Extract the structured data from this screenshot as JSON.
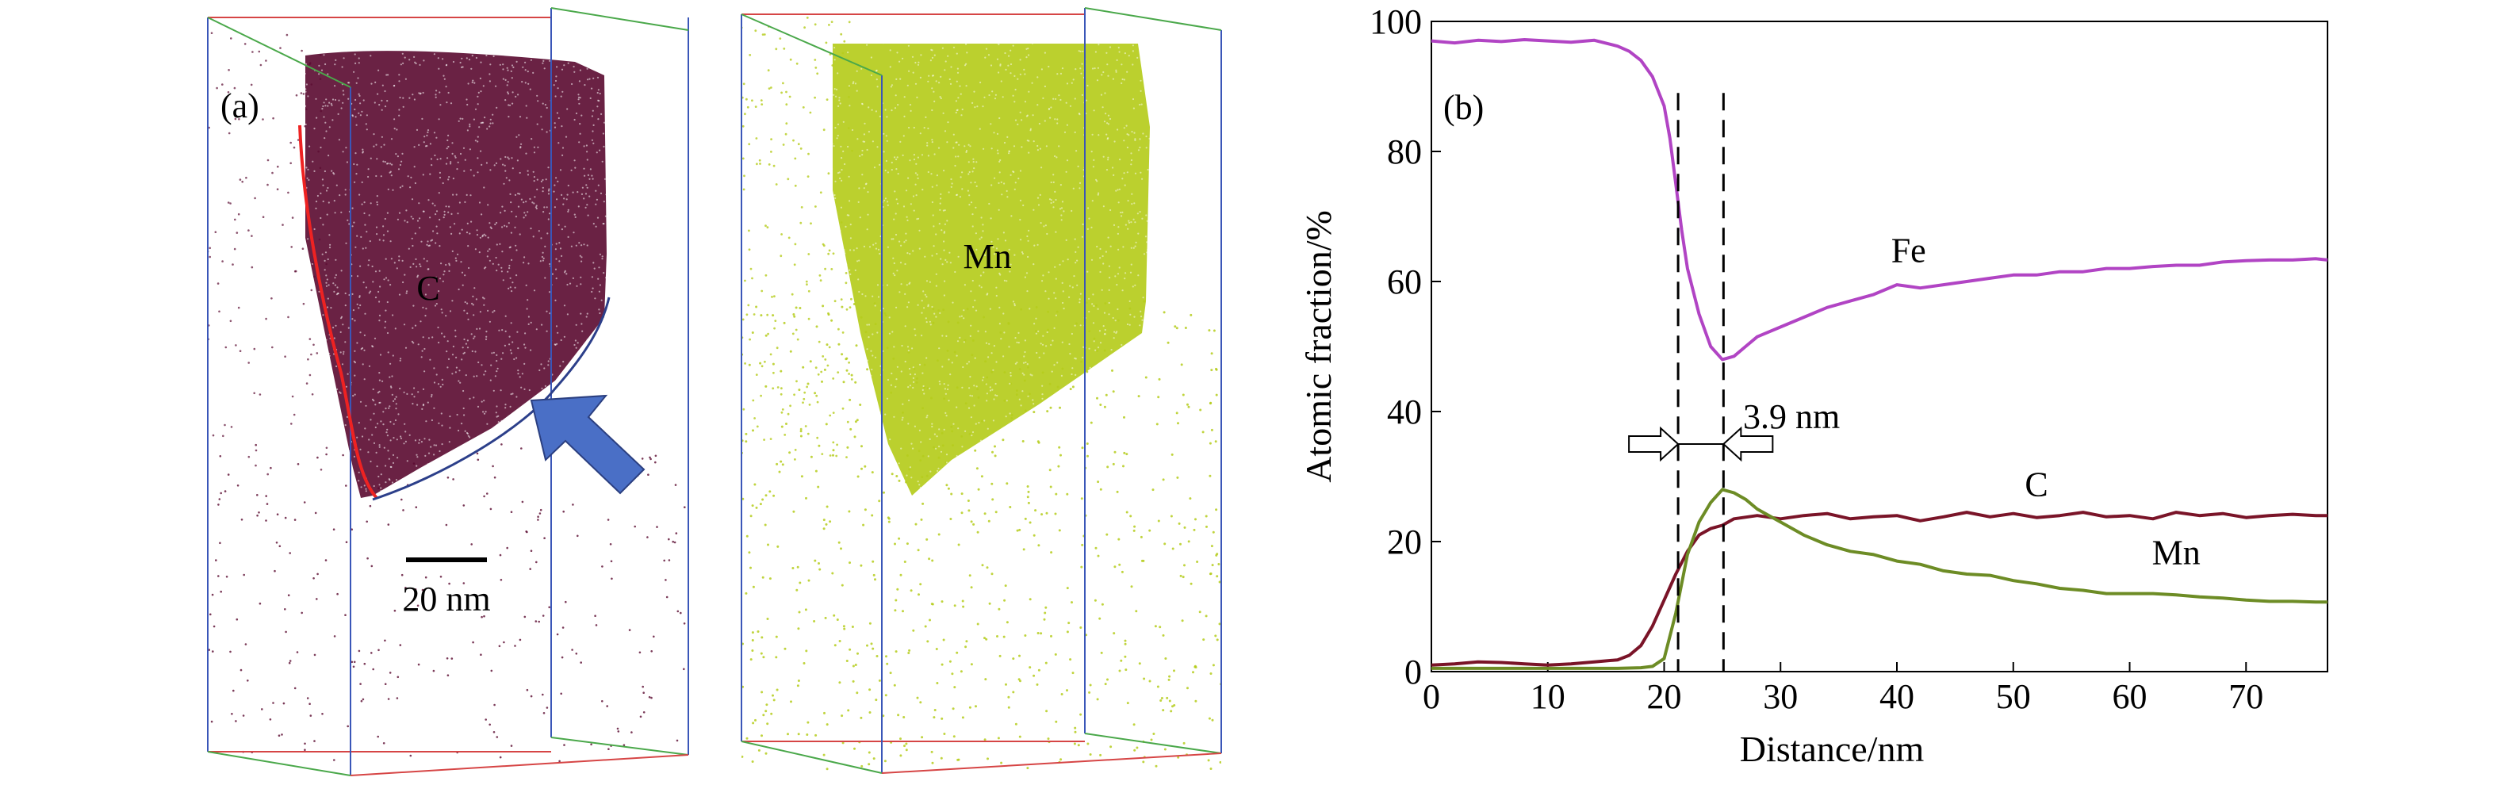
{
  "panel_a": {
    "label": "(a)",
    "carbon_label": "C",
    "manganese_label": "Mn",
    "scale_bar_label": "20 nm",
    "colors": {
      "carbon_atoms": "#5a0a30",
      "manganese_atoms": "#b5cc1c",
      "box_blue": "#3a56b8",
      "box_red": "#d64545",
      "box_green": "#4aa84a",
      "interface_red": "#ee2222",
      "interface_blue": "#2c3f8a",
      "arrow": "#4a6fc6"
    }
  },
  "chart_data": {
    "type": "line",
    "panel_label": "(b)",
    "xlabel": "Distance/nm",
    "ylabel": "Atomic fraction/%",
    "xlim": [
      0,
      77
    ],
    "ylim": [
      0,
      100
    ],
    "xticks": [
      0,
      10,
      20,
      30,
      40,
      50,
      60,
      70
    ],
    "yticks": [
      0,
      20,
      40,
      60,
      80,
      100
    ],
    "grid": false,
    "annotation": "3.9 nm",
    "interface_lines_x": [
      21.2,
      25.1
    ],
    "series": [
      {
        "name": "Fe",
        "color": "#b144c4",
        "x": [
          0,
          2,
          4,
          6,
          8,
          10,
          12,
          14,
          16,
          17,
          18,
          19,
          20,
          20.5,
          21,
          21.5,
          22,
          23,
          24,
          25,
          26,
          27,
          28,
          30,
          32,
          34,
          36,
          38,
          40,
          42,
          44,
          46,
          48,
          50,
          52,
          54,
          56,
          58,
          60,
          62,
          64,
          66,
          68,
          70,
          72,
          74,
          76,
          77
        ],
        "values": [
          97,
          96.7,
          97.1,
          96.9,
          97.2,
          97,
          96.8,
          97.1,
          96.2,
          95.4,
          94,
          91.5,
          87,
          82,
          75,
          68,
          62,
          55,
          50,
          48,
          48.5,
          50,
          51.5,
          53,
          54.5,
          56,
          57,
          58,
          59.5,
          59,
          59.5,
          60,
          60.5,
          61,
          61,
          61.5,
          61.5,
          62,
          62,
          62.3,
          62.5,
          62.5,
          63,
          63.2,
          63.3,
          63.3,
          63.5,
          63.3
        ]
      },
      {
        "name": "C",
        "color": "#7a1428",
        "x": [
          0,
          2,
          4,
          6,
          8,
          10,
          12,
          14,
          16,
          17,
          18,
          19,
          20,
          21,
          22,
          23,
          24,
          25,
          26,
          28,
          30,
          32,
          34,
          36,
          38,
          40,
          42,
          44,
          46,
          48,
          50,
          52,
          54,
          56,
          58,
          60,
          62,
          64,
          66,
          68,
          70,
          72,
          74,
          76,
          77
        ],
        "values": [
          1,
          1.2,
          1.5,
          1.4,
          1.2,
          1,
          1.2,
          1.5,
          1.8,
          2.5,
          4,
          7,
          11,
          15,
          18.5,
          21,
          22,
          22.5,
          23.5,
          24,
          23.5,
          24,
          24.3,
          23.5,
          23.8,
          24,
          23.2,
          23.8,
          24.5,
          23.8,
          24.3,
          23.7,
          24,
          24.5,
          23.8,
          24,
          23.5,
          24.5,
          24,
          24.3,
          23.7,
          24,
          24.2,
          24,
          24
        ]
      },
      {
        "name": "Mn",
        "color": "#6d8c25",
        "x": [
          0,
          2,
          4,
          6,
          8,
          10,
          12,
          14,
          16,
          18,
          19,
          20,
          21,
          22,
          23,
          24,
          25,
          26,
          27,
          28,
          30,
          32,
          34,
          36,
          38,
          40,
          42,
          44,
          46,
          48,
          50,
          52,
          54,
          56,
          58,
          60,
          62,
          64,
          66,
          68,
          70,
          72,
          74,
          76,
          77
        ],
        "values": [
          0.5,
          0.5,
          0.5,
          0.5,
          0.5,
          0.5,
          0.5,
          0.5,
          0.5,
          0.6,
          0.8,
          2,
          9,
          18,
          23,
          26,
          28,
          27.5,
          26.5,
          25,
          23,
          21,
          19.5,
          18.5,
          18,
          17,
          16.5,
          15.5,
          15,
          14.8,
          14,
          13.5,
          12.8,
          12.5,
          12,
          12,
          12,
          11.8,
          11.5,
          11.3,
          11,
          10.8,
          10.8,
          10.7,
          10.7
        ]
      }
    ]
  }
}
